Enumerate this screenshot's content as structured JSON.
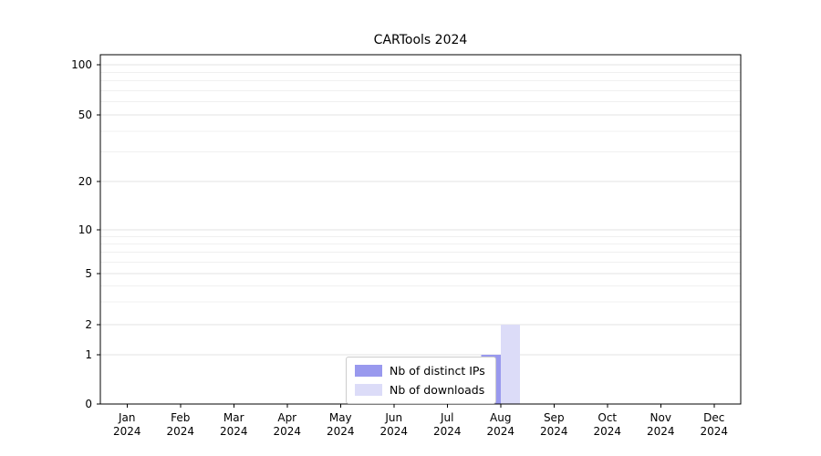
{
  "chart_data": {
    "type": "bar",
    "title": "CARTools 2024",
    "categories": [
      "Jan 2024",
      "Feb 2024",
      "Mar 2024",
      "Apr 2024",
      "May 2024",
      "Jun 2024",
      "Jul 2024",
      "Aug 2024",
      "Sep 2024",
      "Oct 2024",
      "Nov 2024",
      "Dec 2024"
    ],
    "series": [
      {
        "name": "Nb of distinct IPs",
        "color": "#9999ee",
        "values": [
          0,
          0,
          0,
          0,
          0,
          0,
          0,
          1,
          0,
          0,
          0,
          0
        ]
      },
      {
        "name": "Nb of downloads",
        "color": "#dcdcf8",
        "values": [
          0,
          0,
          0,
          0,
          0,
          0,
          0,
          2,
          0,
          0,
          0,
          0
        ]
      }
    ],
    "yscale": "symlog",
    "yticks": [
      0,
      1,
      2,
      5,
      10,
      20,
      50,
      100
    ],
    "ylim": [
      0,
      120
    ],
    "xlabel": "",
    "ylabel": "",
    "grid": true,
    "legend": {
      "position": "lower center inside",
      "entries": [
        "Nb of distinct IPs",
        "Nb of downloads"
      ]
    }
  }
}
